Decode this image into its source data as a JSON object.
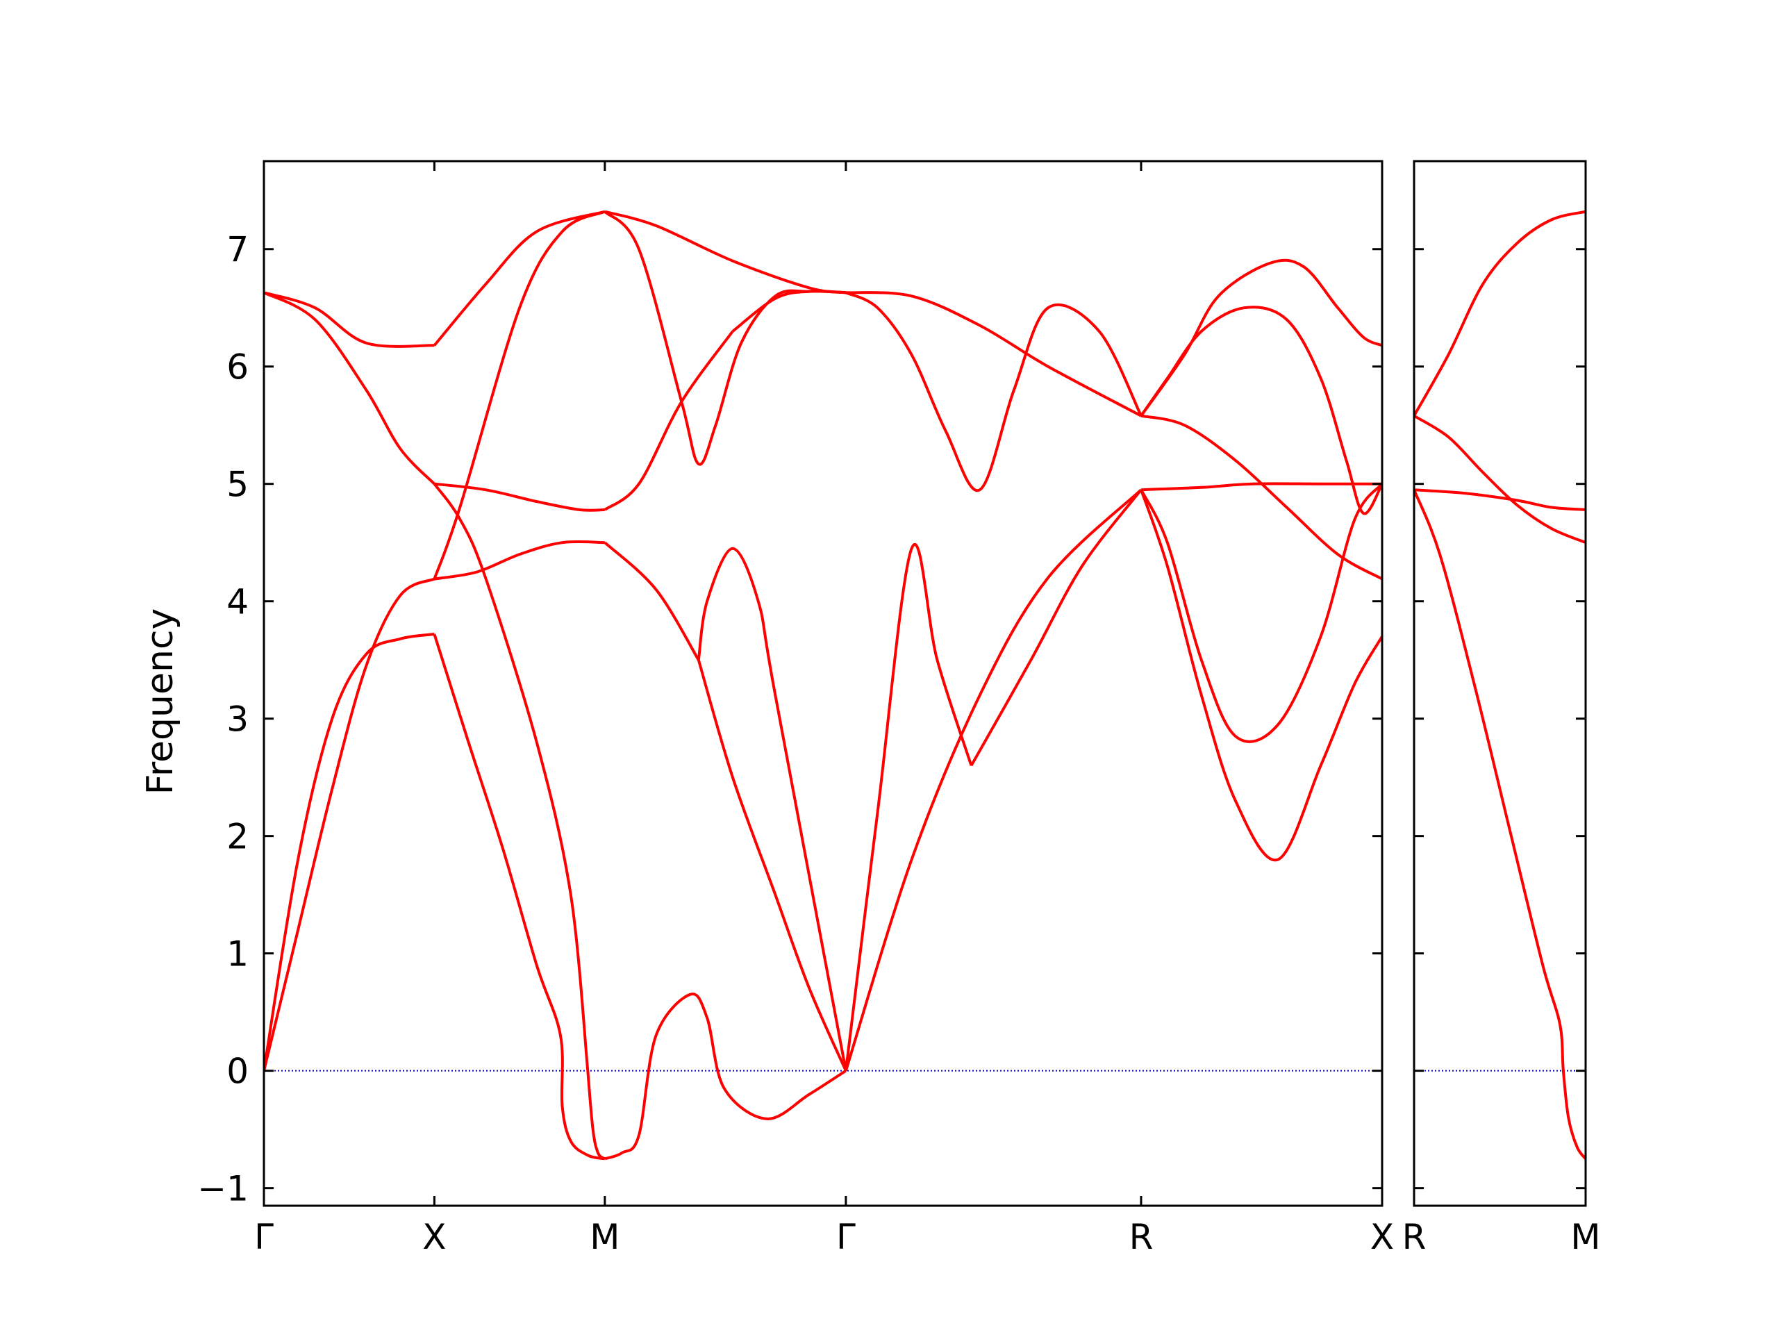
{
  "chart_data": {
    "type": "line",
    "ylabel": "Frequency",
    "ylim": [
      -1.15,
      7.75
    ],
    "yticks": [
      -1,
      0,
      1,
      2,
      3,
      4,
      5,
      6,
      7
    ],
    "ytick_labels": [
      "−1",
      "0",
      "1",
      "2",
      "3",
      "4",
      "5",
      "6",
      "7"
    ],
    "zero_line_color": "#0000cc",
    "band_color": "#ff0000",
    "panels": [
      {
        "xticks": [
          0,
          1,
          2,
          3.414,
          5.146,
          6.56
        ],
        "xtick_labels": [
          "Γ",
          "X",
          "M",
          "Γ",
          "R",
          "X"
        ],
        "xlim": [
          0,
          6.56
        ],
        "bands": [
          {
            "x": [
              0,
              0.2,
              0.4,
              0.6,
              0.8,
              1
            ],
            "y": [
              0,
              1.8,
              3.0,
              3.55,
              3.68,
              3.72
            ]
          },
          {
            "x": [
              1,
              1.2,
              1.4,
              1.6,
              1.74,
              1.75,
              1.8,
              1.9,
              2
            ],
            "y": [
              3.72,
              2.8,
              1.9,
              0.9,
              0.3,
              -0.3,
              -0.6,
              -0.72,
              -0.75
            ]
          },
          {
            "x": [
              2,
              2.1,
              2.2,
              2.3,
              2.5,
              2.6,
              2.7,
              2.95,
              3.2,
              3.414
            ],
            "y": [
              -0.75,
              -0.7,
              -0.55,
              0.3,
              0.65,
              0.45,
              -0.15,
              -0.41,
              -0.2,
              0
            ]
          },
          {
            "x": [
              3.414,
              3.8,
              4.2,
              4.6,
              5.146
            ],
            "y": [
              0,
              1.8,
              3.2,
              4.2,
              4.95
            ]
          },
          {
            "x": [
              5.146,
              5.5,
              5.8,
              6.2,
              6.56
            ],
            "y": [
              4.95,
              4.97,
              5.0,
              5.0,
              5.0
            ]
          },
          {
            "x": [
              0,
              0.2,
              0.4,
              0.6,
              0.8,
              1
            ],
            "y": [
              0,
              1.2,
              2.4,
              3.45,
              4.05,
              4.19
            ]
          },
          {
            "x": [
              1,
              1.25,
              1.5,
              1.75,
              2
            ],
            "y": [
              4.19,
              4.25,
              4.4,
              4.5,
              4.5
            ]
          },
          {
            "x": [
              2,
              2.3,
              2.55
            ],
            "y": [
              4.5,
              4.1,
              3.5
            ]
          },
          {
            "x": [
              2.55,
              2.75,
              3.0,
              3.2,
              3.414
            ],
            "y": [
              3.5,
              2.5,
              1.5,
              0.7,
              0
            ]
          },
          {
            "x": [
              2.55,
              2.6,
              2.75,
              2.9,
              3.0,
              3.414
            ],
            "y": [
              3.5,
              4.0,
              4.45,
              4.0,
              3.2,
              0
            ]
          },
          {
            "x": [
              3.414,
              3.6,
              3.8,
              3.95,
              4.15
            ],
            "y": [
              0,
              2.2,
              4.45,
              3.5,
              2.6
            ]
          },
          {
            "x": [
              4.15,
              4.5,
              4.8,
              5.146
            ],
            "y": [
              2.6,
              3.5,
              4.3,
              4.95
            ]
          },
          {
            "x": [
              5.146,
              5.3,
              5.5,
              5.7,
              5.95,
              6.2,
              6.4,
              6.56
            ],
            "y": [
              4.95,
              4.3,
              3.2,
              2.3,
              1.8,
              2.6,
              3.3,
              3.7
            ]
          },
          {
            "x": [
              5.146,
              5.3,
              5.5,
              5.7,
              5.95,
              6.2,
              6.4,
              6.56
            ],
            "y": [
              4.95,
              4.5,
              3.5,
              2.85,
              2.95,
              3.7,
              4.7,
              5.0
            ]
          },
          {
            "x": [
              0,
              0.3,
              0.6,
              0.8,
              1
            ],
            "y": [
              6.63,
              6.4,
              5.8,
              5.3,
              5.0
            ]
          },
          {
            "x": [
              1,
              1.3,
              1.6,
              1.85,
              2
            ],
            "y": [
              5.0,
              4.95,
              4.85,
              4.78,
              4.78
            ]
          },
          {
            "x": [
              2,
              2.2,
              2.45,
              2.75
            ],
            "y": [
              4.78,
              5.0,
              5.7,
              6.3
            ]
          },
          {
            "x": [
              2.75,
              3.0,
              3.2,
              3.414
            ],
            "y": [
              6.3,
              6.58,
              6.64,
              6.63
            ]
          },
          {
            "x": [
              0,
              0.3,
              0.6,
              1
            ],
            "y": [
              6.63,
              6.5,
              6.2,
              6.18
            ]
          },
          {
            "x": [
              1,
              1.3,
              1.6,
              2
            ],
            "y": [
              6.18,
              6.7,
              7.15,
              7.32
            ]
          },
          {
            "x": [
              2,
              2.3,
              2.75,
              3.2,
              3.414
            ],
            "y": [
              7.32,
              7.2,
              6.9,
              6.67,
              6.63
            ]
          },
          {
            "x": [
              1,
              1.15,
              1.5,
              1.75,
              2
            ],
            "y": [
              4.19,
              4.8,
              6.5,
              7.15,
              7.32
            ]
          },
          {
            "x": [
              1,
              1.15,
              1.3,
              1.6,
              1.8,
              1.9
            ],
            "y": [
              5.0,
              4.7,
              4.2,
              2.8,
              1.5,
              0
            ]
          },
          {
            "x": [
              1.9,
              1.93,
              1.96,
              2
            ],
            "y": [
              0,
              -0.5,
              -0.7,
              -0.75
            ]
          },
          {
            "x": [
              2,
              2.2,
              2.45,
              2.55,
              2.65,
              2.8,
              3.0,
              3.2,
              3.414
            ],
            "y": [
              7.32,
              7.0,
              5.7,
              5.17,
              5.5,
              6.2,
              6.6,
              6.64,
              6.63
            ]
          },
          {
            "x": [
              3.414,
              3.6,
              3.8,
              4.0,
              4.2,
              4.4,
              4.6,
              4.9,
              5.146
            ],
            "y": [
              6.63,
              6.5,
              6.1,
              5.45,
              4.95,
              5.8,
              6.5,
              6.3,
              5.58
            ]
          },
          {
            "x": [
              3.414,
              3.8,
              4.2,
              4.6,
              5.146
            ],
            "y": [
              6.63,
              6.6,
              6.35,
              6.0,
              5.58
            ]
          },
          {
            "x": [
              5.146,
              5.4,
              5.6,
              5.9,
              6.1,
              6.3,
              6.45,
              6.56
            ],
            "y": [
              5.58,
              6.1,
              6.6,
              6.88,
              6.85,
              6.5,
              6.25,
              6.18
            ]
          },
          {
            "x": [
              5.146,
              5.3,
              5.5,
              5.75,
              6.0,
              6.2,
              6.35,
              6.45,
              6.56
            ],
            "y": [
              5.58,
              5.9,
              6.3,
              6.5,
              6.4,
              5.9,
              5.2,
              4.75,
              5.0
            ]
          },
          {
            "x": [
              5.146,
              5.4,
              5.7,
              6.0,
              6.3,
              6.56
            ],
            "y": [
              5.58,
              5.5,
              5.2,
              4.8,
              4.4,
              4.19
            ]
          }
        ]
      },
      {
        "xticks": [
          0,
          1
        ],
        "xtick_labels": [
          "R",
          "M"
        ],
        "xlim": [
          0,
          1
        ],
        "bands": [
          {
            "x": [
              0,
              0.2,
              0.4,
              0.6,
              0.8,
              1
            ],
            "y": [
              5.58,
              6.1,
              6.7,
              7.05,
              7.25,
              7.32
            ]
          },
          {
            "x": [
              0,
              0.2,
              0.4,
              0.6,
              0.8,
              1
            ],
            "y": [
              5.58,
              5.4,
              5.1,
              4.82,
              4.62,
              4.5
            ]
          },
          {
            "x": [
              0,
              0.3,
              0.6,
              0.8,
              1
            ],
            "y": [
              4.95,
              4.92,
              4.86,
              4.8,
              4.78
            ]
          },
          {
            "x": [
              0,
              0.15,
              0.35,
              0.55,
              0.75,
              0.85,
              0.87,
              0.9,
              0.95,
              1
            ],
            "y": [
              4.95,
              4.4,
              3.3,
              2.1,
              0.9,
              0.4,
              0,
              -0.4,
              -0.65,
              -0.75
            ]
          }
        ]
      }
    ]
  }
}
